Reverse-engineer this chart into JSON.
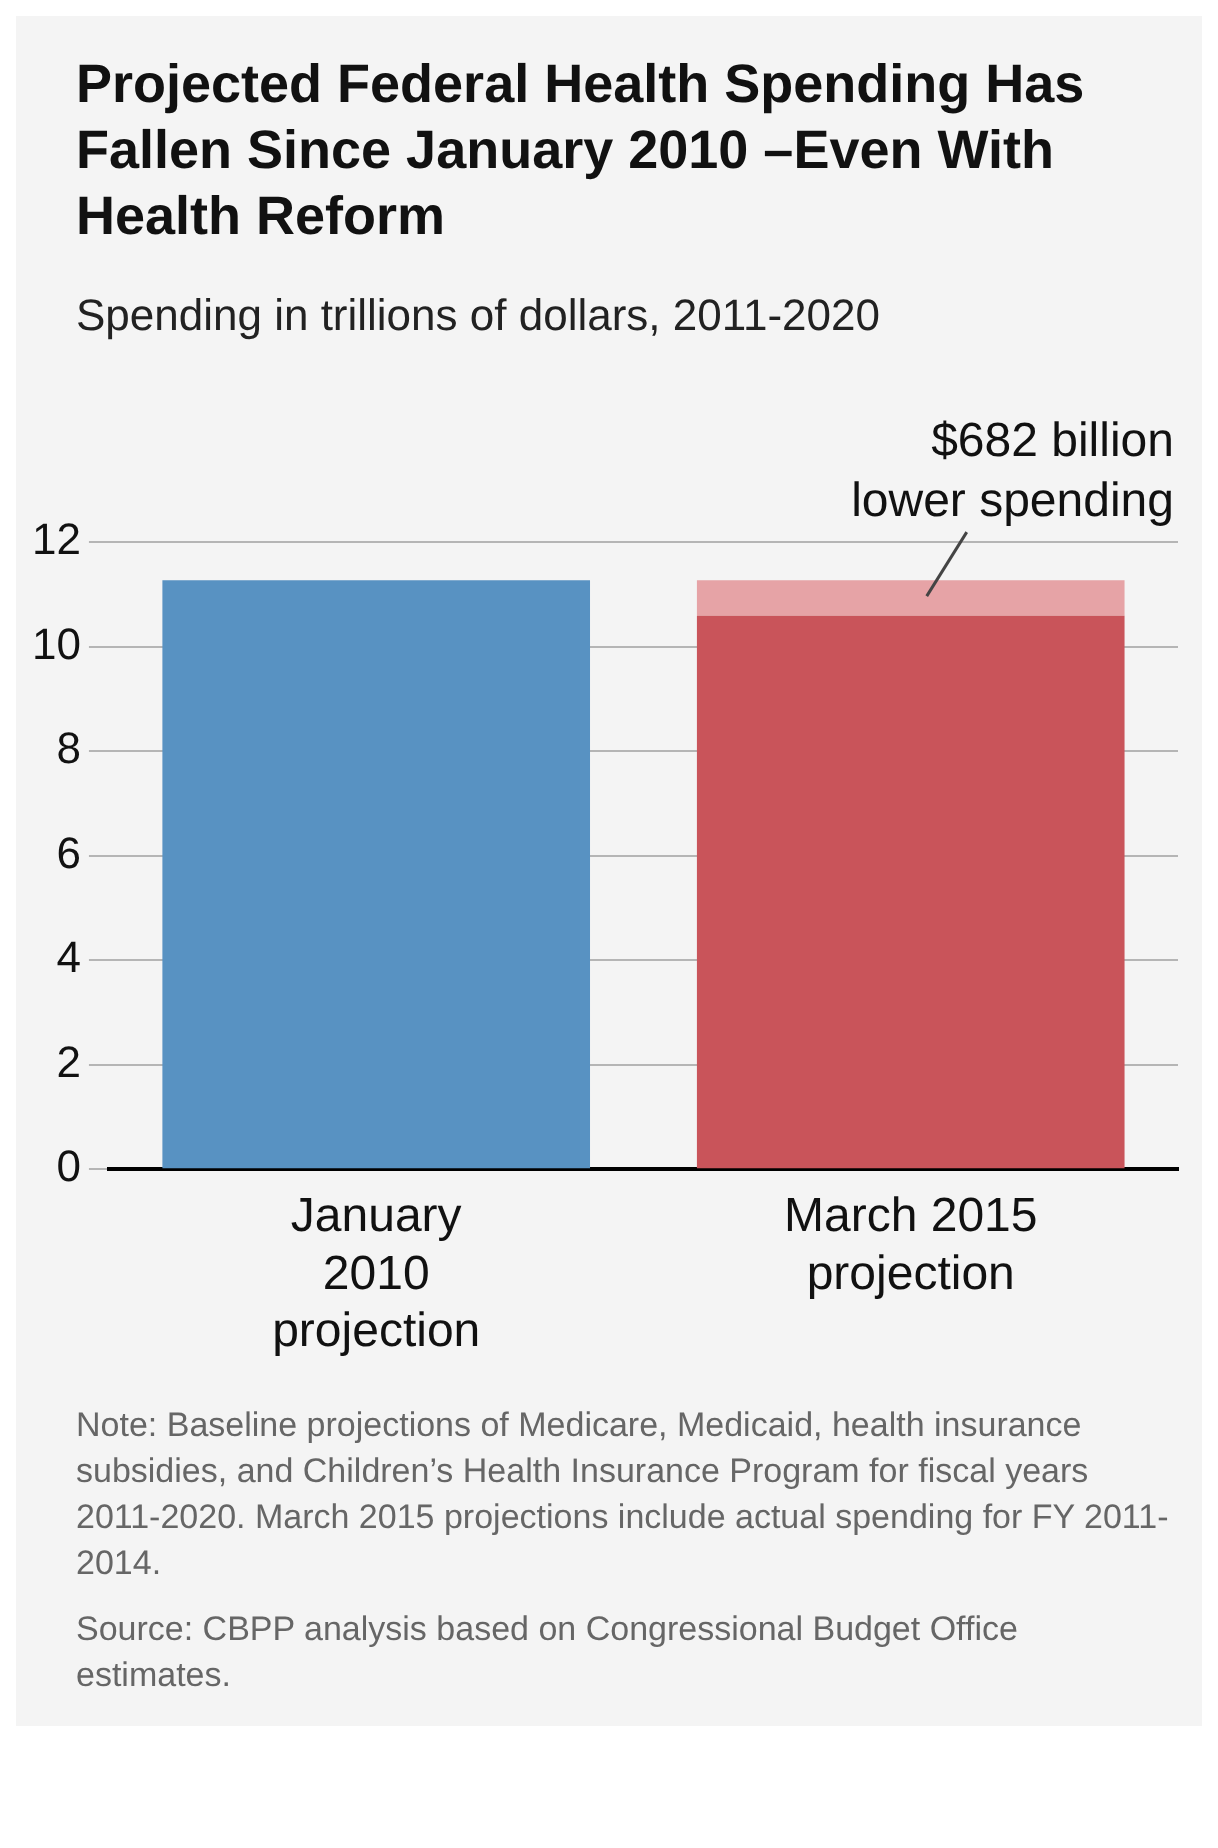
{
  "chart_data": {
    "type": "bar",
    "title": "Projected Federal Health Spending Has Fallen Since January 2010 –Even With Health Reform",
    "subtitle": "Spending in trillions of dollars, 2011-2020",
    "categories": [
      "January 2010 projection",
      "March 2015 projection"
    ],
    "stacked": true,
    "series": [
      {
        "colors": [
          "#5892c2",
          "#c9545a"
        ],
        "values": [
          11.27,
          10.59
        ]
      },
      {
        "color": "#e6a3a6",
        "values": [
          null,
          0.68
        ]
      }
    ],
    "ylim": [
      0,
      12
    ],
    "yticks": [
      0,
      2,
      4,
      6,
      8,
      10,
      12
    ],
    "grid": "y",
    "legend": false,
    "annotations": [
      {
        "text": "$682 billion lower spending",
        "x": "March 2015 projection",
        "y": 11.27
      },
      "Note: Baseline projections of Medicare, Medicaid, health insurance subsidies, and Children’s Health Insurance Program for fiscal years 2011-2020. March 2015 projections include actual spending for FY 2011-2014.",
      "Source: CBPP analysis based on Congressional Budget Office estimates."
    ]
  }
}
